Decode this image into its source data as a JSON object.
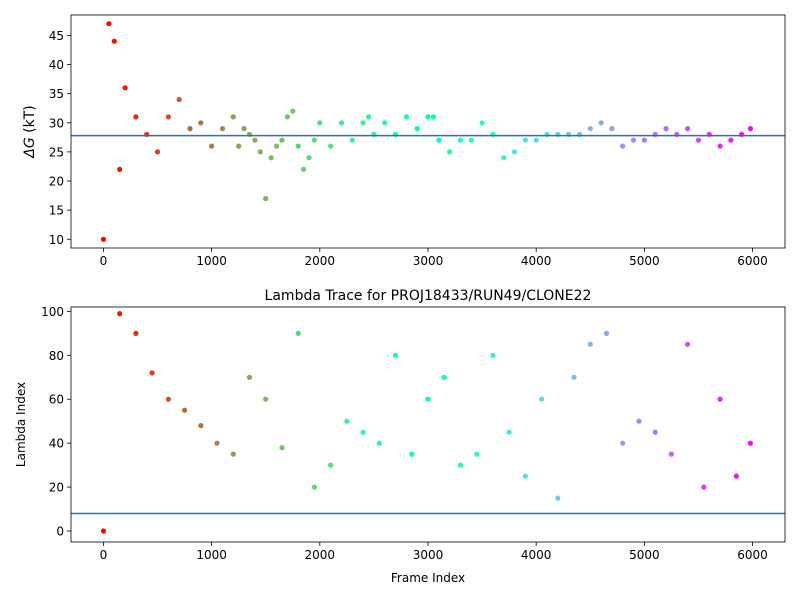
{
  "chart_data": [
    {
      "type": "scatter",
      "title": "",
      "xlabel": "",
      "ylabel_symbol": "ΔG",
      "ylabel_unit": " (kT)",
      "xlim": [
        -300,
        6300
      ],
      "ylim": [
        8.5,
        48.5
      ],
      "xticks": [
        0,
        1000,
        2000,
        3000,
        4000,
        5000,
        6000
      ],
      "yticks": [
        10,
        15,
        20,
        25,
        30,
        35,
        40,
        45
      ],
      "colormap": "rainbow",
      "x_max": 6000,
      "hline": 27.8,
      "hline_color": "#1f77b4",
      "series": [
        {
          "x": [
            0,
            50,
            100,
            150,
            200,
            300,
            400,
            500,
            600,
            700,
            800,
            900,
            1000,
            1100,
            1200,
            1250,
            1300,
            1350,
            1400,
            1450,
            1500,
            1550,
            1600,
            1650,
            1700,
            1750,
            1800,
            1850,
            1900,
            1950,
            2000,
            2100,
            2200,
            2300,
            2400,
            2450,
            2500,
            2600,
            2700,
            2800,
            2900,
            3000,
            3050,
            3100,
            3200,
            3300,
            3400,
            3500,
            3600,
            3700,
            3800,
            3900,
            4000,
            4100,
            4200,
            4300,
            4400,
            4500,
            4600,
            4700,
            4800,
            4900,
            5000,
            5100,
            5200,
            5300,
            5400,
            5500,
            5600,
            5700,
            5800,
            5900,
            5980
          ],
          "y": [
            10,
            47,
            44,
            22,
            36,
            31,
            28,
            25,
            31,
            34,
            29,
            30,
            26,
            29,
            31,
            26,
            29,
            28,
            27,
            25,
            17,
            24,
            26,
            27,
            31,
            32,
            26,
            22,
            24,
            27,
            30,
            26,
            30,
            27,
            30,
            31,
            28,
            30,
            28,
            31,
            29,
            31,
            31,
            27,
            25,
            27,
            27,
            30,
            28,
            24,
            25,
            27,
            27,
            28,
            28,
            28,
            28,
            29,
            30,
            29,
            26,
            27,
            27,
            28,
            29,
            28,
            29,
            27,
            28,
            26,
            27,
            28,
            29
          ]
        }
      ]
    },
    {
      "type": "scatter",
      "title": "Lambda Trace for PROJ18433/RUN49/CLONE22",
      "xlabel": "Frame Index",
      "ylabel": "Lambda Index",
      "xlim": [
        -300,
        6300
      ],
      "ylim": [
        -5,
        102
      ],
      "xticks": [
        0,
        1000,
        2000,
        3000,
        4000,
        5000,
        6000
      ],
      "yticks": [
        0,
        20,
        40,
        60,
        80,
        100
      ],
      "colormap": "rainbow",
      "x_max": 6000,
      "hline": 8,
      "hline_color": "#1f77b4",
      "series": [
        {
          "x": [
            0,
            150,
            300,
            450,
            600,
            750,
            900,
            1050,
            1200,
            1350,
            1500,
            1650,
            1800,
            1950,
            2100,
            2250,
            2400,
            2550,
            2700,
            2850,
            3000,
            3150,
            3300,
            3450,
            3600,
            3750,
            3900,
            4050,
            4200,
            4350,
            4500,
            4650,
            4800,
            4950,
            5100,
            5250,
            5400,
            5550,
            5700,
            5850,
            5980
          ],
          "y": [
            0,
            99,
            90,
            72,
            60,
            55,
            48,
            40,
            35,
            70,
            60,
            38,
            90,
            20,
            30,
            50,
            45,
            40,
            80,
            35,
            60,
            70,
            30,
            35,
            80,
            45,
            25,
            60,
            15,
            70,
            85,
            90,
            40,
            50,
            45,
            35,
            85,
            20,
            60,
            25,
            40
          ]
        }
      ]
    }
  ]
}
